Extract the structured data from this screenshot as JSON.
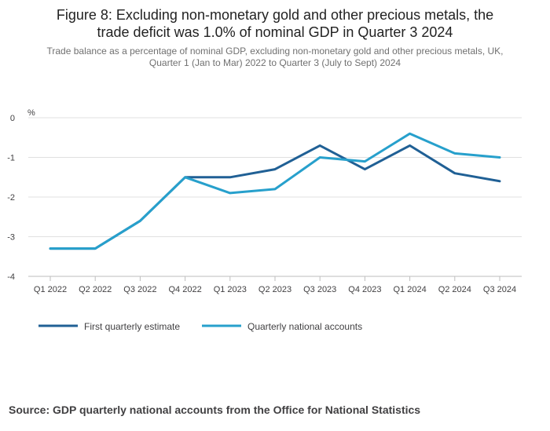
{
  "title_lines": [
    "Figure 8: Excluding non-monetary gold and other precious metals, the",
    "trade deficit was 1.0% of nominal GDP in Quarter 3 2024"
  ],
  "subtitle_lines": [
    "Trade balance as a percentage of nominal GDP, excluding non-monetary gold and other precious metals, UK,",
    "Quarter 1 (Jan to Mar) 2022 to Quarter 3 (July to Sept) 2024"
  ],
  "source": "Source:  GDP quarterly national accounts from the Office for National Statistics",
  "chart_data": {
    "type": "line",
    "ylabel": "%",
    "ylim": [
      -4,
      0
    ],
    "yticks": [
      0,
      -1,
      -2,
      -3,
      -4
    ],
    "grid": true,
    "legend_position": "bottom-left",
    "categories": [
      "Q1 2022",
      "Q2 2022",
      "Q3 2022",
      "Q4 2022",
      "Q1 2023",
      "Q2 2023",
      "Q3 2023",
      "Q4 2023",
      "Q1 2024",
      "Q2 2024",
      "Q3 2024"
    ],
    "series": [
      {
        "name": "First quarterly estimate",
        "color": "#206095",
        "values": [
          -3.3,
          -3.3,
          -2.6,
          -1.5,
          -1.5,
          -1.3,
          -0.7,
          -1.3,
          -0.7,
          -1.4,
          -1.6
        ]
      },
      {
        "name": "Quarterly national accounts",
        "color": "#27a0cc",
        "values": [
          -3.3,
          -3.3,
          -2.6,
          -1.5,
          -1.9,
          -1.8,
          -1.0,
          -1.1,
          -0.4,
          -0.9,
          -1.0
        ]
      }
    ]
  }
}
